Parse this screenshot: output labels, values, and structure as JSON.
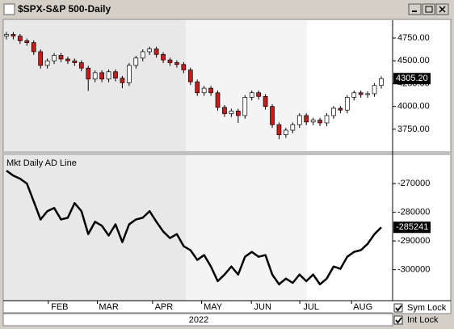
{
  "window_title": "$SPX-S&P 500-Daily",
  "chart_data": [
    {
      "type": "candlestick",
      "title": "$SPX-S&P 500-Daily",
      "categories": [
        null,
        null,
        null,
        null,
        null,
        null,
        null,
        null,
        null,
        null,
        null,
        null,
        null,
        null,
        null,
        null,
        null,
        null,
        null,
        null,
        null,
        null,
        null,
        null,
        null,
        null,
        null,
        null,
        null,
        null,
        null,
        null,
        null,
        null,
        null,
        null,
        null,
        null,
        null,
        null,
        null,
        null,
        null,
        null,
        null,
        null,
        null,
        null,
        null,
        null,
        null,
        null,
        null,
        null,
        null,
        null
      ],
      "open": [
        4770,
        4790,
        4770,
        4720,
        4700,
        4600,
        4450,
        4500,
        4560,
        4520,
        4500,
        4480,
        4420,
        4300,
        4370,
        4300,
        4380,
        4310,
        4260,
        4450,
        4530,
        4600,
        4630,
        4570,
        4510,
        4480,
        4460,
        4400,
        4270,
        4150,
        4200,
        4150,
        3990,
        3920,
        3950,
        3900,
        4100,
        4150,
        4110,
        4000,
        3800,
        3690,
        3740,
        3800,
        3900,
        3830,
        3850,
        3820,
        3900,
        3980,
        3960,
        4100,
        4150,
        4130,
        4140,
        4230
      ],
      "high": [
        4815,
        4815,
        4795,
        4745,
        4725,
        4625,
        4525,
        4585,
        4585,
        4545,
        4525,
        4505,
        4445,
        4395,
        4395,
        4405,
        4405,
        4335,
        4475,
        4555,
        4625,
        4655,
        4655,
        4595,
        4535,
        4505,
        4485,
        4425,
        4295,
        4225,
        4225,
        4175,
        4015,
        3975,
        3975,
        4125,
        4175,
        4175,
        4135,
        4025,
        3825,
        3765,
        3825,
        3925,
        3925,
        3875,
        3875,
        3925,
        4005,
        4005,
        4125,
        4175,
        4175,
        4165,
        4255,
        4330
      ],
      "low": [
        4735,
        4735,
        4685,
        4665,
        4565,
        4415,
        4415,
        4465,
        4485,
        4465,
        4445,
        4385,
        4170,
        4265,
        4265,
        4265,
        4275,
        4200,
        4225,
        4415,
        4495,
        4565,
        4535,
        4475,
        4445,
        4425,
        4365,
        4235,
        4115,
        4115,
        4115,
        3955,
        3885,
        3885,
        3820,
        3865,
        4065,
        4075,
        3965,
        3765,
        3640,
        3655,
        3705,
        3765,
        3795,
        3795,
        3785,
        3785,
        3865,
        3925,
        3925,
        4065,
        4095,
        4095,
        4105,
        4195
      ],
      "close": [
        4790,
        4770,
        4720,
        4700,
        4600,
        4450,
        4500,
        4560,
        4520,
        4500,
        4480,
        4420,
        4300,
        4370,
        4300,
        4380,
        4310,
        4260,
        4450,
        4530,
        4600,
        4630,
        4570,
        4510,
        4480,
        4460,
        4400,
        4270,
        4150,
        4200,
        4150,
        3990,
        3920,
        3950,
        3900,
        4100,
        4150,
        4110,
        4000,
        3800,
        3690,
        3740,
        3800,
        3900,
        3830,
        3850,
        3820,
        3900,
        3980,
        3960,
        4100,
        4150,
        4130,
        4140,
        4230,
        4305.2
      ],
      "last_value_label": "4305.20",
      "up_color": "#ffffff",
      "down_color": "#cc1a1a",
      "ylim": [
        3510,
        4945
      ],
      "yticks": [
        {
          "value": 3750,
          "label": "3750.00"
        },
        {
          "value": 4000,
          "label": "4000.00"
        },
        {
          "value": 4250,
          "label": "4250.00"
        },
        {
          "value": 4500,
          "label": "4500.00"
        },
        {
          "value": 4750,
          "label": "4750.00"
        }
      ]
    },
    {
      "type": "line",
      "title": "Mkt Daily AD Line",
      "color": "#000000",
      "values": [
        -265500,
        -267200,
        -268300,
        -270000,
        -276200,
        -282500,
        -279600,
        -278500,
        -282500,
        -281900,
        -276800,
        -279600,
        -287600,
        -283300,
        -284700,
        -288100,
        -284200,
        -290400,
        -284200,
        -282500,
        -281900,
        -279600,
        -283300,
        -286700,
        -289000,
        -287600,
        -291800,
        -293200,
        -296600,
        -294900,
        -298900,
        -304000,
        -301700,
        -298900,
        -301700,
        -295500,
        -293800,
        -295500,
        -294900,
        -301700,
        -305100,
        -303100,
        -304600,
        -301700,
        -304000,
        -301700,
        -305100,
        -303100,
        -298900,
        -299700,
        -295500,
        -293800,
        -293200,
        -291000,
        -287600,
        -285241
      ],
      "ylim": [
        -310800,
        -260100
      ],
      "yticks": [
        -300000,
        -290000,
        -280000,
        -270000
      ],
      "xticks": [
        {
          "value": 7.8,
          "label": "FEB"
        },
        {
          "value": 15,
          "label": "MAR"
        },
        {
          "value": 23.1,
          "label": "APR"
        },
        {
          "value": 30.3,
          "label": "MAY"
        },
        {
          "value": 37.6,
          "label": "JUN"
        },
        {
          "value": 44.7,
          "label": "JUL"
        },
        {
          "value": 52.3,
          "label": "AUG"
        }
      ],
      "xlabel": "2022"
    }
  ],
  "controls": [
    {
      "label": "Sym Lock",
      "checked": true
    },
    {
      "label": "Int Lock",
      "checked": true
    }
  ]
}
